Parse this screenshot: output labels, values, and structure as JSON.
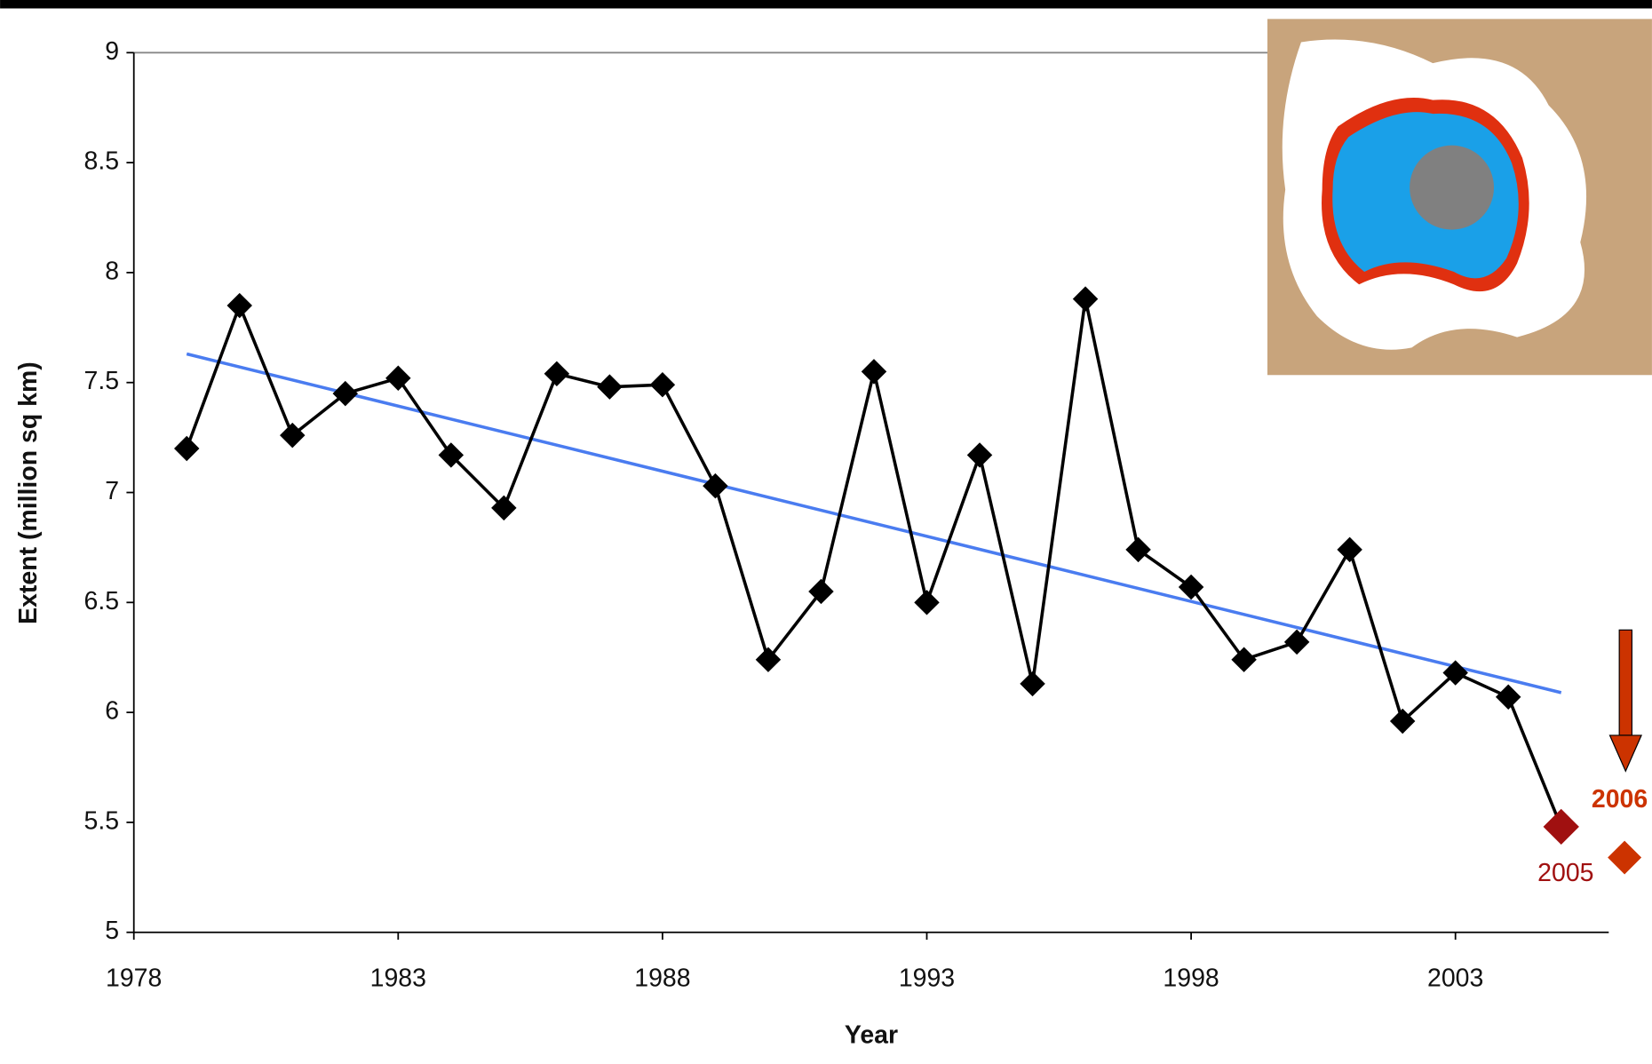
{
  "chart_data": {
    "type": "line",
    "x_label": "Year",
    "y_label": "Extent (million sq km)",
    "x": [
      1979,
      1980,
      1981,
      1982,
      1983,
      1984,
      1985,
      1986,
      1987,
      1988,
      1989,
      1990,
      1991,
      1992,
      1993,
      1994,
      1995,
      1996,
      1997,
      1998,
      1999,
      2000,
      2001,
      2002,
      2003,
      2004,
      2005
    ],
    "values": [
      7.2,
      7.85,
      7.26,
      7.45,
      7.52,
      7.17,
      6.93,
      7.54,
      7.48,
      7.49,
      7.03,
      6.24,
      6.55,
      7.55,
      6.5,
      7.17,
      6.13,
      7.88,
      6.74,
      6.57,
      6.24,
      6.32,
      6.74,
      5.96,
      6.18,
      6.07,
      5.48
    ],
    "color": "#000000",
    "last_marker_color": "#a01010",
    "last_label": "2005",
    "trend": {
      "x": [
        1979,
        2005
      ],
      "values": [
        7.63,
        6.09
      ],
      "color": "#4a7cf0"
    },
    "extra_point": {
      "x": 2006,
      "value": 5.34,
      "color": "#cc3300",
      "label": "2006"
    },
    "xlim": [
      1978,
      2005.9
    ],
    "xticks": [
      1978,
      1983,
      1988,
      1993,
      1998,
      2003
    ],
    "ylim": [
      5,
      9
    ],
    "yticks": [
      5,
      5.5,
      6,
      6.5,
      7,
      7.5,
      8,
      8.5,
      9
    ],
    "grid": false
  }
}
